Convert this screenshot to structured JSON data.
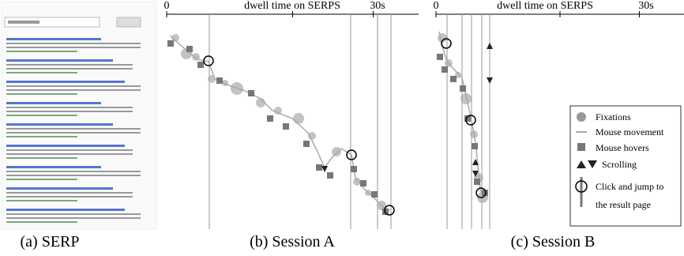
{
  "panels": [
    {
      "caption": "(a) SERP"
    },
    {
      "caption": "(b) Session A",
      "axis_label": "dwell time on SERPS",
      "ticks": [
        "0",
        "30s"
      ]
    },
    {
      "caption": "(c) Session B",
      "axis_label": "dwell time on SERPS",
      "ticks": [
        "0",
        "30s"
      ]
    }
  ],
  "legend": [
    "Fixations",
    "Mouse movement",
    "Mouse hovers",
    "Scrolling",
    "Click and jump to",
    "the result page"
  ]
}
